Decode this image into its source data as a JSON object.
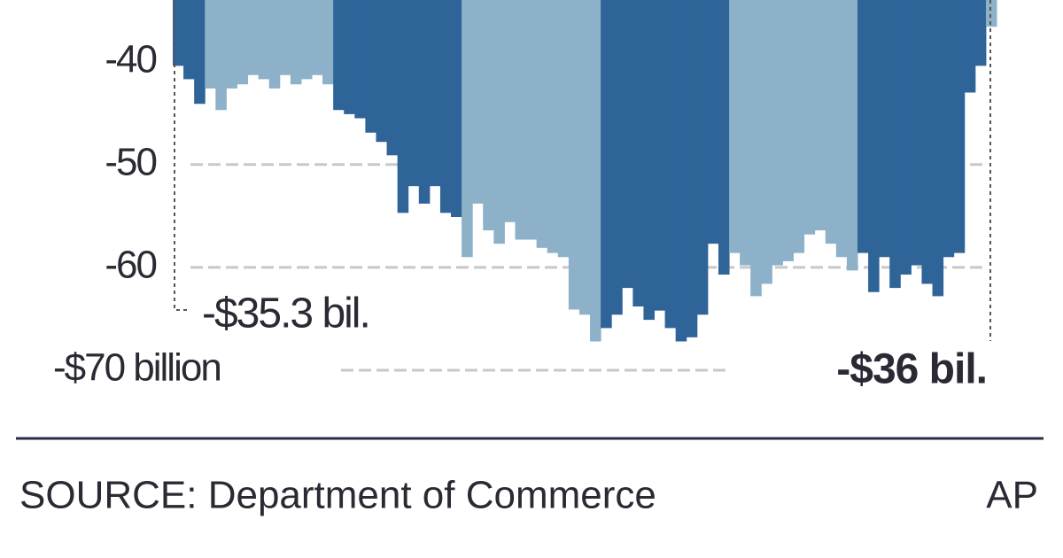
{
  "chart_data": {
    "type": "bar",
    "ylim": [
      -70,
      -34
    ],
    "yticks": [
      -40,
      -50,
      -60,
      {
        "value": -70,
        "label": "-$70 billion"
      }
    ],
    "grid": true,
    "annotations": [
      "-$35.3 bil.",
      "-$36 bil."
    ],
    "source": "SOURCE: Department of Commerce",
    "credit": "AP",
    "categories": [
      null,
      null,
      null,
      null,
      null,
      null,
      null,
      null,
      null,
      null,
      null,
      null,
      null,
      null,
      null,
      null,
      null,
      null,
      null,
      null,
      null,
      null,
      null,
      null,
      null,
      null,
      null,
      null,
      null,
      null,
      null,
      null,
      null,
      null,
      null,
      null,
      null,
      null,
      null,
      null,
      null,
      null,
      null,
      null,
      null,
      null,
      null,
      null,
      null,
      null,
      null,
      null,
      null,
      null,
      null,
      null,
      null,
      null,
      null,
      null,
      null,
      null,
      null,
      null,
      null,
      null,
      null,
      null,
      null,
      null,
      null,
      null,
      null,
      null,
      null,
      null,
      null
    ],
    "values": [
      -40.4,
      -41.7,
      -44.1,
      -42.6,
      -44.7,
      -42.6,
      -42.2,
      -41.3,
      -41.7,
      -42.6,
      -41.3,
      -42.2,
      -41.7,
      -41.3,
      -42.2,
      -44.7,
      -45.1,
      -45.5,
      -46.9,
      -47.8,
      -49.1,
      -54.7,
      -52.1,
      -53.8,
      -52.1,
      -54.7,
      -55.1,
      -59,
      -53.8,
      -56.4,
      -57.7,
      -55.6,
      -57.3,
      -57.3,
      -58.1,
      -58.6,
      -59,
      -64.1,
      -64.6,
      -67.2,
      -65.9,
      -64.6,
      -62,
      -63.8,
      -65.1,
      -64.2,
      -65.9,
      -67.2,
      -66.8,
      -64.6,
      -57.7,
      -60.7,
      -58.6,
      -59.8,
      -62.8,
      -61.6,
      -59.8,
      -59.4,
      -58.6,
      -56.8,
      -56.4,
      -57.7,
      -59,
      -60.3,
      -58.6,
      -62.4,
      -59,
      -62,
      -60.7,
      -59.8,
      -61.6,
      -62.8,
      -59,
      -58.6,
      -43,
      -40.4,
      -36.6
    ],
    "colors": [
      "#2f6499",
      "#2f6499",
      "#2f6499",
      "#8cb1c9",
      "#8cb1c9",
      "#8cb1c9",
      "#8cb1c9",
      "#8cb1c9",
      "#8cb1c9",
      "#8cb1c9",
      "#8cb1c9",
      "#8cb1c9",
      "#8cb1c9",
      "#8cb1c9",
      "#8cb1c9",
      "#2f6499",
      "#2f6499",
      "#2f6499",
      "#2f6499",
      "#2f6499",
      "#2f6499",
      "#2f6499",
      "#2f6499",
      "#2f6499",
      "#2f6499",
      "#2f6499",
      "#2f6499",
      "#8cb1c9",
      "#8cb1c9",
      "#8cb1c9",
      "#8cb1c9",
      "#8cb1c9",
      "#8cb1c9",
      "#8cb1c9",
      "#8cb1c9",
      "#8cb1c9",
      "#8cb1c9",
      "#8cb1c9",
      "#8cb1c9",
      "#8cb1c9",
      "#2f6499",
      "#2f6499",
      "#2f6499",
      "#2f6499",
      "#2f6499",
      "#2f6499",
      "#2f6499",
      "#2f6499",
      "#2f6499",
      "#2f6499",
      "#2f6499",
      "#2f6499",
      "#8cb1c9",
      "#8cb1c9",
      "#8cb1c9",
      "#8cb1c9",
      "#8cb1c9",
      "#8cb1c9",
      "#8cb1c9",
      "#8cb1c9",
      "#8cb1c9",
      "#8cb1c9",
      "#8cb1c9",
      "#8cb1c9",
      "#2f6499",
      "#2f6499",
      "#2f6499",
      "#2f6499",
      "#2f6499",
      "#2f6499",
      "#2f6499",
      "#2f6499",
      "#2f6499",
      "#2f6499",
      "#2f6499",
      "#2f6499",
      "#8cb1c9"
    ]
  }
}
